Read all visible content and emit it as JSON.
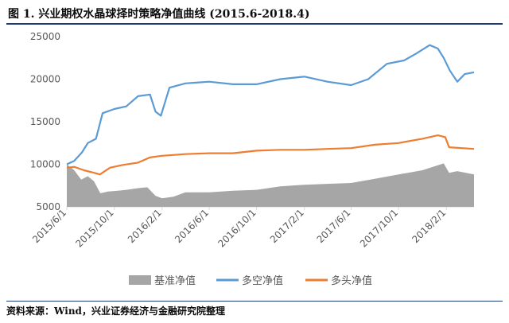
{
  "header": {
    "title": "图 1. 兴业期权水晶球择时策略净值曲线 (2015.6-2018.4)"
  },
  "footer": {
    "source": "资料来源：Wind，兴业证券经济与金融研究院整理"
  },
  "colors": {
    "benchmark": "#a6a6a6",
    "long_short": "#5b9bd5",
    "long_only": "#ed7d31",
    "axis": "#d9d9d9",
    "text": "#595959"
  },
  "chart_data": {
    "type": "line",
    "x_start": "2015-06-01",
    "x_end": "2018-04-13",
    "x_ticks": [
      "2015/6/1",
      "2015/10/1",
      "2016/2/1",
      "2016/6/1",
      "2016/10/1",
      "2017/2/1",
      "2017/6/1",
      "2017/10/1",
      "2018/2/1"
    ],
    "ylim": [
      5000,
      25000
    ],
    "y_ticks": [
      "5000",
      "10000",
      "15000",
      "20000",
      "25000"
    ],
    "grid": false,
    "legend_position": "bottom",
    "series": [
      {
        "name": "基准净值",
        "type": "area",
        "points": [
          [
            "2015-06-01",
            10000
          ],
          [
            "2015-06-20",
            9300
          ],
          [
            "2015-07-08",
            8200
          ],
          [
            "2015-07-25",
            8600
          ],
          [
            "2015-08-10",
            8000
          ],
          [
            "2015-08-26",
            6600
          ],
          [
            "2015-09-15",
            6800
          ],
          [
            "2015-10-10",
            6900
          ],
          [
            "2015-11-01",
            7000
          ],
          [
            "2015-12-01",
            7200
          ],
          [
            "2015-12-25",
            7300
          ],
          [
            "2016-01-15",
            6300
          ],
          [
            "2016-02-01",
            6000
          ],
          [
            "2016-03-01",
            6200
          ],
          [
            "2016-04-01",
            6700
          ],
          [
            "2016-06-01",
            6700
          ],
          [
            "2016-08-01",
            6900
          ],
          [
            "2016-10-01",
            7000
          ],
          [
            "2016-12-01",
            7400
          ],
          [
            "2017-02-01",
            7600
          ],
          [
            "2017-04-01",
            7700
          ],
          [
            "2017-06-01",
            7800
          ],
          [
            "2017-08-01",
            8300
          ],
          [
            "2017-10-01",
            8800
          ],
          [
            "2017-12-01",
            9300
          ],
          [
            "2018-01-25",
            10100
          ],
          [
            "2018-02-08",
            9000
          ],
          [
            "2018-03-01",
            9200
          ],
          [
            "2018-04-13",
            8800
          ]
        ]
      },
      {
        "name": "多空净值",
        "type": "line",
        "points": [
          [
            "2015-06-01",
            10000
          ],
          [
            "2015-06-20",
            10400
          ],
          [
            "2015-07-10",
            11400
          ],
          [
            "2015-07-25",
            12500
          ],
          [
            "2015-08-15",
            13000
          ],
          [
            "2015-09-01",
            16000
          ],
          [
            "2015-10-01",
            16500
          ],
          [
            "2015-11-01",
            16800
          ],
          [
            "2015-12-01",
            18000
          ],
          [
            "2016-01-01",
            18200
          ],
          [
            "2016-01-15",
            16200
          ],
          [
            "2016-01-29",
            15700
          ],
          [
            "2016-02-20",
            19000
          ],
          [
            "2016-04-01",
            19500
          ],
          [
            "2016-06-01",
            19700
          ],
          [
            "2016-08-01",
            19400
          ],
          [
            "2016-10-01",
            19400
          ],
          [
            "2016-12-01",
            20000
          ],
          [
            "2017-02-01",
            20300
          ],
          [
            "2017-04-01",
            19700
          ],
          [
            "2017-06-01",
            19300
          ],
          [
            "2017-07-15",
            20000
          ],
          [
            "2017-09-01",
            21800
          ],
          [
            "2017-10-15",
            22200
          ],
          [
            "2017-11-15",
            23000
          ],
          [
            "2017-12-20",
            24000
          ],
          [
            "2018-01-10",
            23600
          ],
          [
            "2018-01-25",
            22500
          ],
          [
            "2018-02-10",
            21000
          ],
          [
            "2018-03-01",
            19700
          ],
          [
            "2018-03-20",
            20600
          ],
          [
            "2018-04-13",
            20800
          ]
        ]
      },
      {
        "name": "多头净值",
        "type": "line",
        "points": [
          [
            "2015-06-01",
            9600
          ],
          [
            "2015-06-20",
            9700
          ],
          [
            "2015-07-15",
            9300
          ],
          [
            "2015-08-10",
            9000
          ],
          [
            "2015-08-25",
            8800
          ],
          [
            "2015-09-20",
            9600
          ],
          [
            "2015-10-20",
            9900
          ],
          [
            "2015-12-01",
            10200
          ],
          [
            "2016-01-01",
            10800
          ],
          [
            "2016-02-01",
            11000
          ],
          [
            "2016-04-01",
            11200
          ],
          [
            "2016-06-01",
            11300
          ],
          [
            "2016-08-01",
            11300
          ],
          [
            "2016-10-01",
            11600
          ],
          [
            "2016-12-01",
            11700
          ],
          [
            "2017-02-01",
            11700
          ],
          [
            "2017-04-01",
            11800
          ],
          [
            "2017-06-01",
            11900
          ],
          [
            "2017-08-01",
            12300
          ],
          [
            "2017-10-01",
            12500
          ],
          [
            "2017-12-01",
            13000
          ],
          [
            "2018-01-10",
            13400
          ],
          [
            "2018-01-29",
            13200
          ],
          [
            "2018-02-08",
            12000
          ],
          [
            "2018-04-13",
            11800
          ]
        ]
      }
    ]
  }
}
